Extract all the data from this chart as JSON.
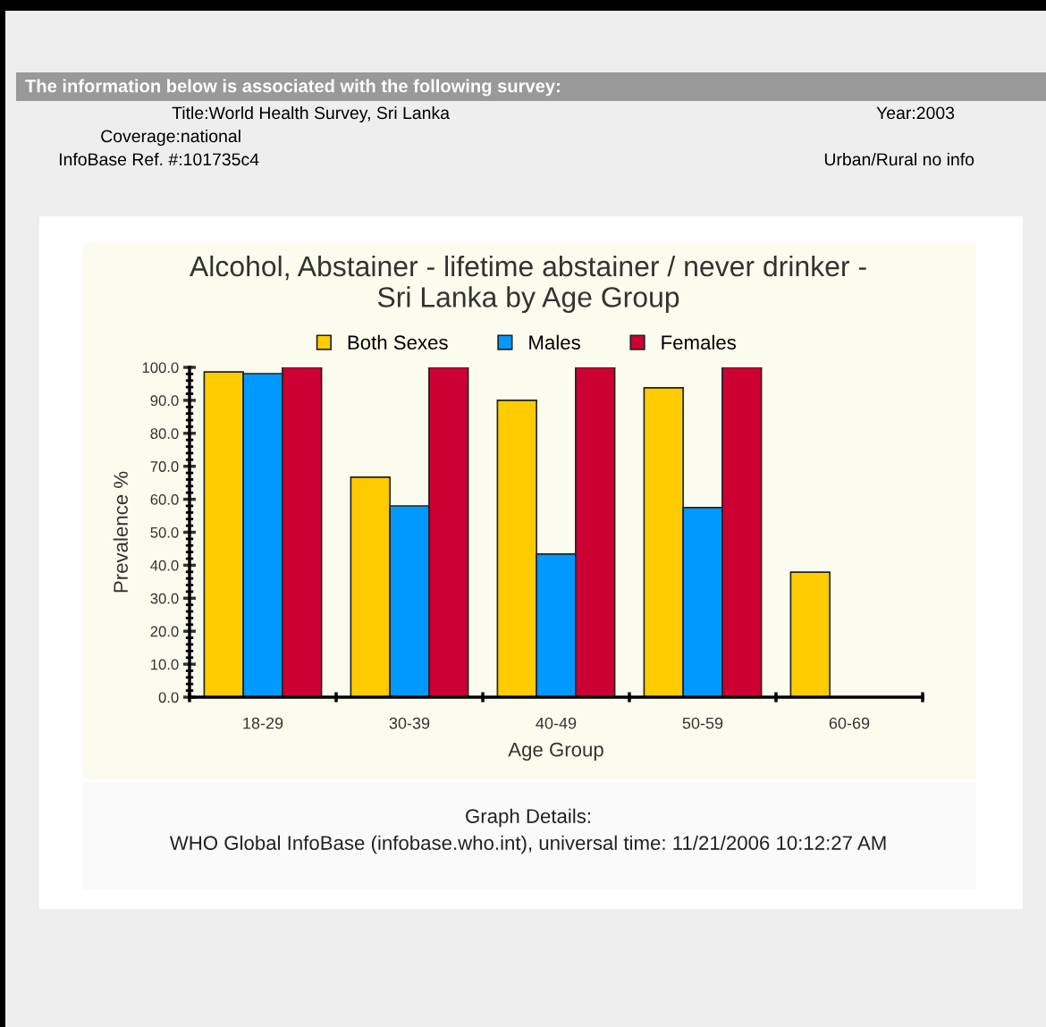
{
  "chart_data": {
    "type": "bar",
    "title": "Alcohol, Abstainer - lifetime abstainer / never drinker -\nSri Lanka by Age Group",
    "xlabel": "Age Group",
    "ylabel": "Prevalence %",
    "categories": [
      "18-29",
      "30-39",
      "40-49",
      "50-59",
      "60-69"
    ],
    "series": [
      {
        "name": "Both Sexes",
        "color": "#ffcc00",
        "values": [
          98.6,
          66.7,
          90.0,
          93.8,
          37.9
        ]
      },
      {
        "name": "Males",
        "color": "#0099ff",
        "values": [
          98.1,
          58.0,
          43.4,
          57.5,
          null
        ]
      },
      {
        "name": "Females",
        "color": "#cc0033",
        "values": [
          100.0,
          100.0,
          100.0,
          100.0,
          null
        ]
      }
    ],
    "ylim": [
      0,
      100
    ],
    "yticks": [
      {
        "value": 0,
        "label": "0.0"
      },
      {
        "value": 10,
        "label": "10.0"
      },
      {
        "value": 20,
        "label": "20.0"
      },
      {
        "value": 30,
        "label": "30.0"
      },
      {
        "value": 40,
        "label": "40.0"
      },
      {
        "value": 50,
        "label": "50.0"
      },
      {
        "value": 60,
        "label": "60.0"
      },
      {
        "value": 70,
        "label": "70.0"
      },
      {
        "value": 80,
        "label": "80.0"
      },
      {
        "value": 90,
        "label": "90.0"
      },
      {
        "value": 100,
        "label": "100.0"
      }
    ],
    "grid": false,
    "legend": "top",
    "annotations": [
      "The information below is associated with the following survey:",
      "Title:World Health Survey, Sri Lanka",
      "Year:2003",
      "Coverage:national",
      "InfoBase Ref. #:101735c4",
      "Urban/Rural no info",
      "Graph Details:",
      "WHO Global InfoBase (infobase.who.int), universal time: 11/21/2006 10:12:27 AM"
    ]
  }
}
